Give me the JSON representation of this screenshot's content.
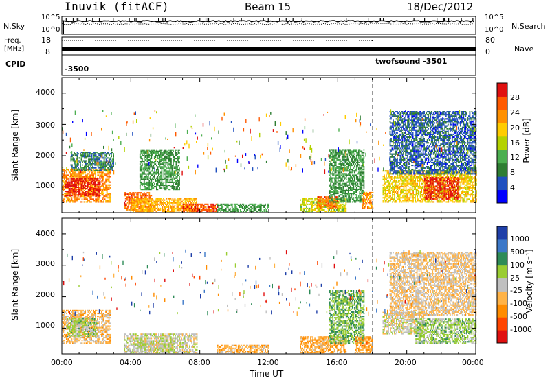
{
  "header": {
    "station": "Inuvik (fitACF)",
    "beam": "Beam 15",
    "date": "18/Dec/2012"
  },
  "noise_panel": {
    "left_label": "N.Sky",
    "right_label": "N.Search",
    "left_ticks": [
      "10^5",
      "10^0"
    ],
    "right_ticks": [
      "10^5",
      "10^0"
    ]
  },
  "freq_panel": {
    "left_label_line1": "Freq.",
    "left_label_line2": "[MHz]",
    "left_ticks": [
      "18",
      "8"
    ],
    "right_label": "Nave",
    "right_ticks": [
      "80",
      "0"
    ]
  },
  "cpid_panel": {
    "label": "CPID",
    "segments": [
      {
        "text": "-3500",
        "start_hour": 0
      },
      {
        "text": "twofsound -3501",
        "start_hour": 18
      }
    ]
  },
  "power_panel": {
    "ylabel": "Slant Range [km]",
    "yticks": [
      "4000",
      "3000",
      "2000",
      "1000"
    ],
    "colorbar_label": "Power [dB]",
    "colorbar_ticks": [
      "28",
      "24",
      "20",
      "16",
      "12",
      "8",
      "4"
    ]
  },
  "velocity_panel": {
    "ylabel": "Slant Range [km]",
    "yticks": [
      "4000",
      "3000",
      "2000",
      "1000"
    ],
    "colorbar_label": "Velocity [m s⁻¹]",
    "colorbar_ticks": [
      "1000",
      "500",
      "100",
      "25",
      "-25",
      "-100",
      "-500",
      "-1000"
    ]
  },
  "x_axis": {
    "ticks": [
      "00:00",
      "04:00",
      "08:00",
      "12:00",
      "16:00",
      "20:00",
      "00:00"
    ],
    "label": "Time UT"
  },
  "chart_data": {
    "type": "heatmap",
    "x_unit": "hours UT",
    "xlim": [
      0,
      24
    ],
    "ylim_km": [
      180,
      4500
    ],
    "mode_change_hour": 18,
    "power": {
      "colorbar_range_db": [
        0,
        30
      ],
      "colors": [
        "#0000ff",
        "#1f4fbf",
        "#2e7d32",
        "#4caf50",
        "#b4d200",
        "#ffcc00",
        "#ff9000",
        "#ff5a00",
        "#e01010"
      ],
      "echo_regions": [
        {
          "t": [
            0.0,
            2.8
          ],
          "r": [
            500,
            1550
          ],
          "db": 22
        },
        {
          "t": [
            0.2,
            2.2
          ],
          "r": [
            700,
            1250
          ],
          "db": 28
        },
        {
          "t": [
            0.5,
            3.0
          ],
          "r": [
            1500,
            2100
          ],
          "db": 8
        },
        {
          "t": [
            3.6,
            5.2
          ],
          "r": [
            250,
            800
          ],
          "db": 24
        },
        {
          "t": [
            4.0,
            7.8
          ],
          "r": [
            200,
            650
          ],
          "db": 20
        },
        {
          "t": [
            4.5,
            6.8
          ],
          "r": [
            900,
            2200
          ],
          "db": 10
        },
        {
          "t": [
            7.0,
            9.0
          ],
          "r": [
            200,
            450
          ],
          "db": 26
        },
        {
          "t": [
            9.0,
            12.0
          ],
          "r": [
            200,
            450
          ],
          "db": 10
        },
        {
          "t": [
            13.8,
            16.5
          ],
          "r": [
            200,
            650
          ],
          "db": 16
        },
        {
          "t": [
            14.8,
            16.0
          ],
          "r": [
            300,
            700
          ],
          "db": 24
        },
        {
          "t": [
            15.5,
            17.5
          ],
          "r": [
            500,
            2200
          ],
          "db": 10
        },
        {
          "t": [
            17.4,
            18.0
          ],
          "r": [
            300,
            800
          ],
          "db": 22
        },
        {
          "t": [
            18.6,
            24.0
          ],
          "r": [
            500,
            1500
          ],
          "db": 18
        },
        {
          "t": [
            21.0,
            23.0
          ],
          "r": [
            600,
            1300
          ],
          "db": 28
        },
        {
          "t": [
            19.0,
            24.0
          ],
          "r": [
            1400,
            3400
          ],
          "db": 6
        }
      ]
    },
    "velocity": {
      "colorbar_range_ms": [
        -1000,
        1000
      ],
      "colors": [
        "#e01010",
        "#ff4500",
        "#ff8c00",
        "#ffb347",
        "#c0c0c0",
        "#9acd32",
        "#2e8b57",
        "#3c78c8",
        "#1f3fa8"
      ],
      "echo_regions": [
        {
          "t": [
            0.0,
            2.8
          ],
          "r": [
            500,
            1550
          ],
          "v": -200
        },
        {
          "t": [
            0.3,
            2.0
          ],
          "r": [
            700,
            1300
          ],
          "v": 150
        },
        {
          "t": [
            3.6,
            7.8
          ],
          "r": [
            200,
            800
          ],
          "v": 0
        },
        {
          "t": [
            4.2,
            6.5
          ],
          "r": [
            250,
            600
          ],
          "v": 60
        },
        {
          "t": [
            9.0,
            12.0
          ],
          "r": [
            200,
            450
          ],
          "v": -250
        },
        {
          "t": [
            13.8,
            16.5
          ],
          "r": [
            200,
            700
          ],
          "v": -300
        },
        {
          "t": [
            15.5,
            17.5
          ],
          "r": [
            500,
            2200
          ],
          "v": 300
        },
        {
          "t": [
            17.0,
            18.0
          ],
          "r": [
            200,
            700
          ],
          "v": -350
        },
        {
          "t": [
            18.6,
            21.0
          ],
          "r": [
            800,
            1500
          ],
          "v": 0
        },
        {
          "t": [
            20.5,
            24.0
          ],
          "r": [
            500,
            1300
          ],
          "v": 200
        },
        {
          "t": [
            19.0,
            24.0
          ],
          "r": [
            1400,
            3400
          ],
          "v": -120
        }
      ]
    }
  }
}
